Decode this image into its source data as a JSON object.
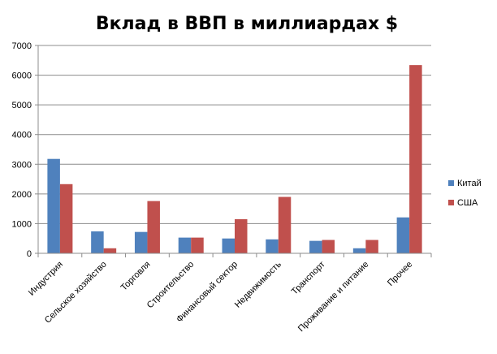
{
  "chart_data": {
    "type": "bar",
    "title": "Вклад в ВВП в миллиардах $",
    "xlabel": "",
    "ylabel": "",
    "ylim": [
      0,
      7000
    ],
    "yticks": [
      0,
      1000,
      2000,
      3000,
      4000,
      5000,
      6000,
      7000
    ],
    "grid": true,
    "legend_position": "right",
    "categories": [
      "Индустрия",
      "Сельское хозяйство",
      "Торговля",
      "Строительство",
      "Финансовый сектор",
      "Недвижимость",
      "Транспорт",
      "Проживание и питание",
      "Прочее"
    ],
    "series": [
      {
        "name": "Китай",
        "color": "#4F81BD",
        "values": [
          3180,
          740,
          720,
          530,
          500,
          470,
          420,
          170,
          1210
        ]
      },
      {
        "name": "США",
        "color": "#C0504D",
        "values": [
          2330,
          170,
          1760,
          530,
          1150,
          1900,
          450,
          450,
          6340
        ]
      }
    ]
  }
}
